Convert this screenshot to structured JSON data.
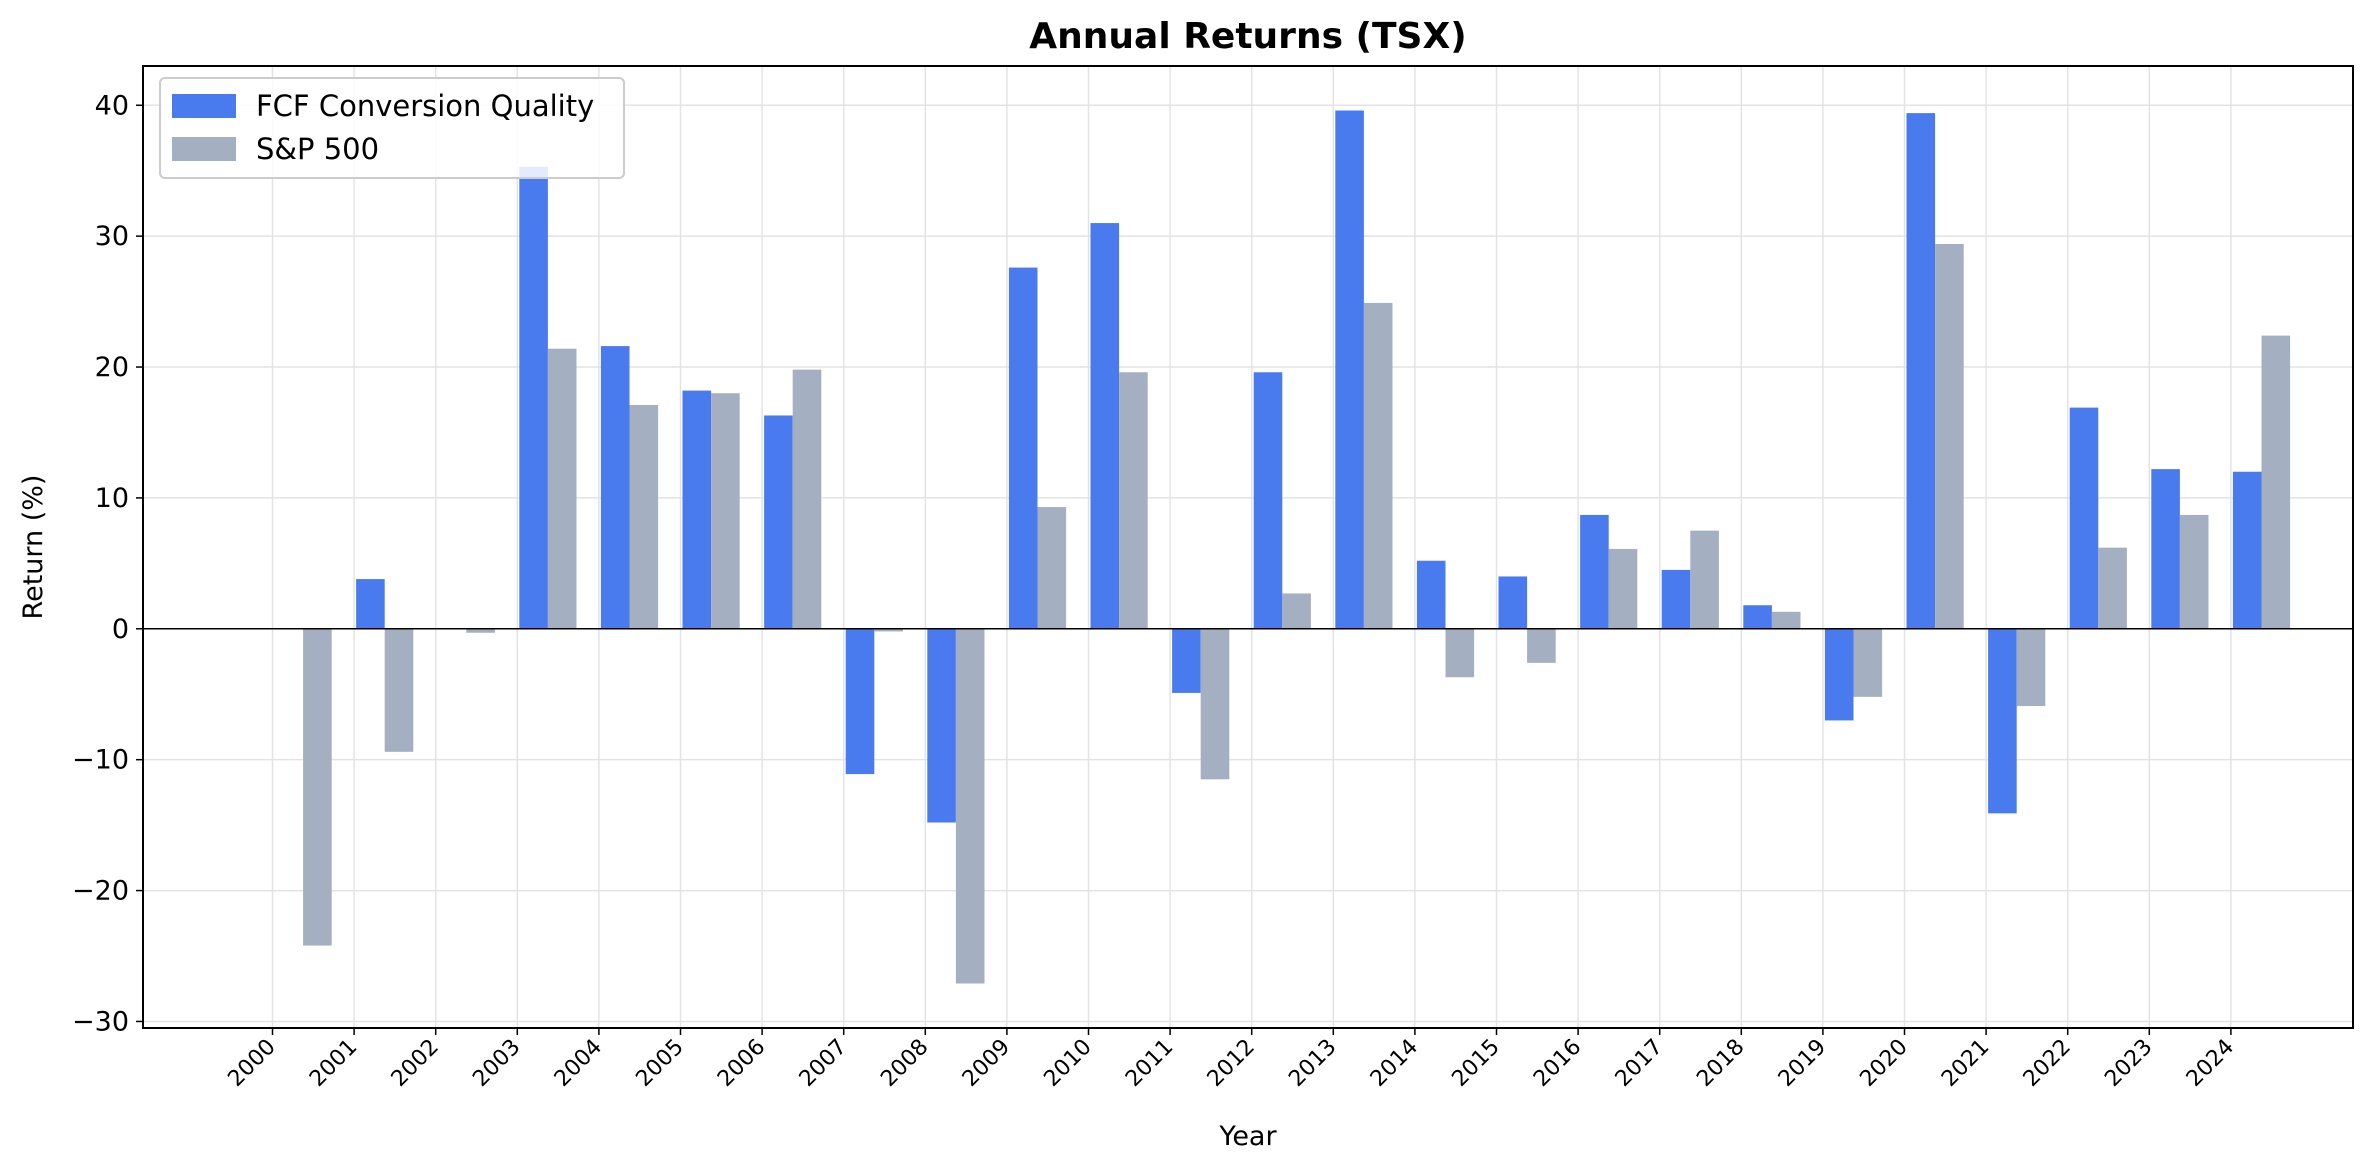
{
  "chart_data": {
    "type": "bar",
    "title": "Annual Returns (TSX)",
    "xlabel": "Year",
    "ylabel": "Return (%)",
    "ylim": [
      -30.5,
      43
    ],
    "yticks": [
      -30,
      -20,
      -10,
      0,
      10,
      20,
      30,
      40
    ],
    "ytick_labels": [
      "−30",
      "−20",
      "−10",
      "0",
      "10",
      "20",
      "30",
      "40"
    ],
    "grid": true,
    "legend_position": "top-left",
    "categories": [
      "2000",
      "2001",
      "2002",
      "2003",
      "2004",
      "2005",
      "2006",
      "2007",
      "2008",
      "2009",
      "2010",
      "2011",
      "2012",
      "2013",
      "2014",
      "2015",
      "2016",
      "2017",
      "2018",
      "2019",
      "2020",
      "2021",
      "2022",
      "2023",
      "2024"
    ],
    "series": [
      {
        "name": "FCF Conversion Quality",
        "color": "#4a7bee",
        "values": [
          0,
          3.8,
          0,
          35.3,
          21.6,
          18.2,
          16.3,
          -11.1,
          -14.8,
          27.6,
          31.0,
          -4.9,
          19.6,
          39.6,
          5.2,
          4.0,
          8.7,
          4.5,
          1.8,
          -7.0,
          39.4,
          -14.1,
          16.9,
          12.2,
          12.0
        ]
      },
      {
        "name": "S&P 500",
        "color": "#a4afc1",
        "values": [
          -24.2,
          -9.4,
          -0.3,
          21.4,
          17.1,
          18.0,
          19.8,
          -0.2,
          -27.1,
          9.3,
          19.6,
          -11.5,
          2.7,
          24.9,
          -3.7,
          -2.6,
          6.1,
          7.5,
          1.3,
          -5.2,
          29.4,
          -5.9,
          6.2,
          8.7,
          22.4
        ]
      }
    ]
  }
}
